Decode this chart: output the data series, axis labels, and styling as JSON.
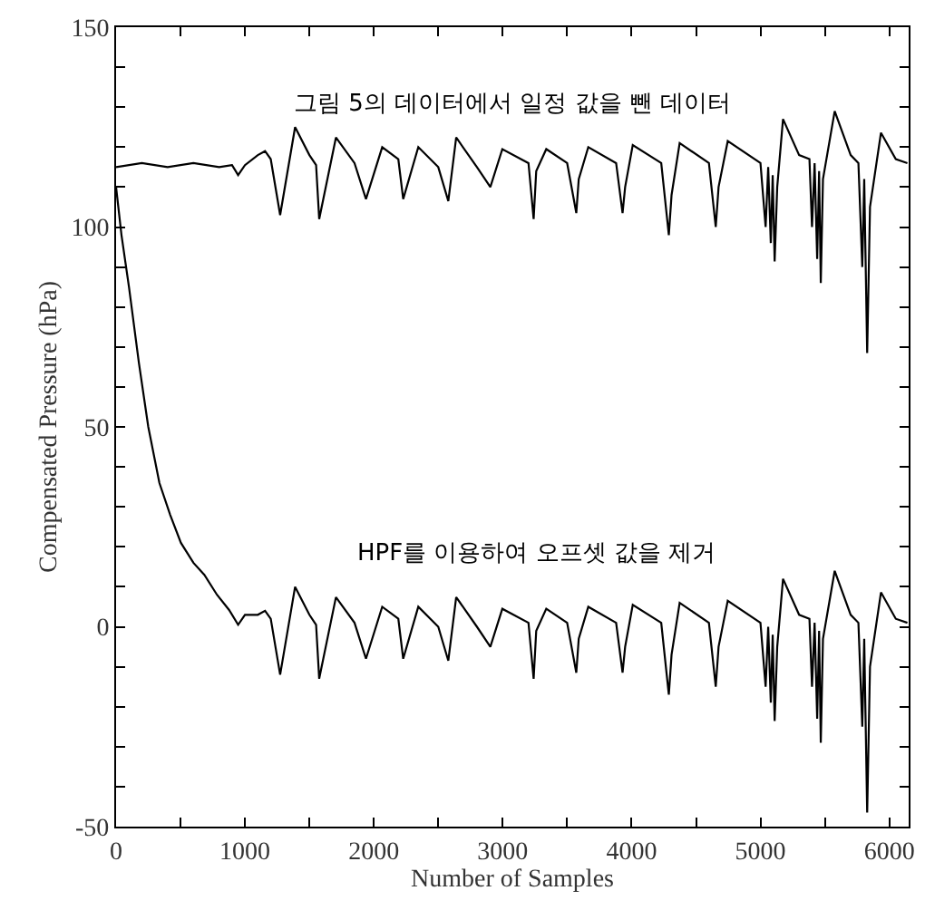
{
  "chart_data": {
    "type": "line",
    "xlabel": "Number of Samples",
    "ylabel": "Compensated Pressure (hPa)",
    "xlim": [
      0,
      6150
    ],
    "ylim": [
      -50,
      150
    ],
    "xticks": [
      0,
      {
        "value": 500,
        "label": null
      },
      1000,
      {
        "value": 1500,
        "label": null
      },
      2000,
      {
        "value": 2500,
        "label": null
      },
      3000,
      {
        "value": 3500,
        "label": null
      },
      4000,
      {
        "value": 4500,
        "label": null
      },
      5000,
      {
        "value": 5500,
        "label": null
      },
      6000
    ],
    "yticks": [
      -50,
      {
        "value": -40,
        "label": null
      },
      {
        "value": -30,
        "label": null
      },
      {
        "value": -20,
        "label": null
      },
      {
        "value": -10,
        "label": null
      },
      0,
      {
        "value": 10,
        "label": null
      },
      {
        "value": 20,
        "label": null
      },
      {
        "value": 30,
        "label": null
      },
      {
        "value": 40,
        "label": null
      },
      50,
      {
        "value": 60,
        "label": null
      },
      {
        "value": 70,
        "label": null
      },
      {
        "value": 80,
        "label": null
      },
      {
        "value": 90,
        "label": null
      },
      100,
      {
        "value": 110,
        "label": null
      },
      {
        "value": 120,
        "label": null
      },
      {
        "value": 130,
        "label": null
      },
      {
        "value": 140,
        "label": null
      },
      150
    ],
    "legend": false,
    "marker": "none",
    "line_style": "solid",
    "annotations": [
      "그림 5의 데이터에서 일정 값을 뺀 데이터",
      "HPF를 이용하여 오프셋 값을 제거"
    ],
    "series": [
      {
        "color": "#000000",
        "x": [
          0,
          200,
          400,
          600,
          800,
          900,
          947,
          1000,
          1100,
          1156,
          1200,
          1273,
          1389,
          1500,
          1552,
          1576,
          1706,
          1850,
          1939,
          2065,
          2190,
          2228,
          2345,
          2500,
          2578,
          2639,
          2800,
          2904,
          2997,
          3200,
          3240,
          3260,
          3338,
          3500,
          3571,
          3590,
          3664,
          3880,
          3930,
          3950,
          4009,
          4230,
          4289,
          4310,
          4373,
          4600,
          4653,
          4675,
          4746,
          5000,
          5040,
          5060,
          5080,
          5095,
          5110,
          5130,
          5175,
          5300,
          5380,
          5400,
          5420,
          5440,
          5455,
          5468,
          5485,
          5576,
          5700,
          5760,
          5790,
          5805,
          5828,
          5850,
          5935,
          6050,
          6140
        ],
        "values": [
          115,
          116,
          115,
          116,
          115,
          115.5,
          113,
          115.5,
          118,
          119,
          117,
          103,
          125,
          118,
          115.5,
          102,
          122.4,
          116,
          107,
          120,
          117,
          107,
          120,
          115,
          106.5,
          122.4,
          115,
          110,
          119.5,
          116,
          102,
          114,
          119.5,
          116,
          103.5,
          112,
          120,
          116,
          103.5,
          110,
          120.5,
          116,
          98,
          108,
          121,
          116,
          100,
          110,
          121.5,
          116,
          100,
          115,
          96,
          113,
          91.4,
          110,
          127,
          118,
          117,
          100,
          116,
          92,
          114,
          86,
          112,
          129,
          118,
          116,
          90,
          112,
          68.5,
          105,
          123.6,
          117,
          116
        ]
      },
      {
        "color": "#000000",
        "x": [
          0,
          42,
          100,
          177,
          250,
          336,
          420,
          503,
          600,
          685,
          783,
          877,
          947,
          1000,
          1100,
          1156,
          1200,
          1273,
          1389,
          1500,
          1552,
          1576,
          1706,
          1850,
          1939,
          2065,
          2190,
          2228,
          2345,
          2500,
          2578,
          2639,
          2800,
          2904,
          2997,
          3200,
          3240,
          3260,
          3338,
          3500,
          3571,
          3590,
          3664,
          3880,
          3930,
          3950,
          4009,
          4230,
          4289,
          4310,
          4373,
          4600,
          4653,
          4675,
          4746,
          5000,
          5040,
          5060,
          5080,
          5095,
          5110,
          5130,
          5175,
          5300,
          5380,
          5400,
          5420,
          5440,
          5455,
          5468,
          5485,
          5576,
          5700,
          5760,
          5790,
          5805,
          5828,
          5850,
          5935,
          6050,
          6140
        ],
        "values": [
          110,
          98,
          85,
          66,
          50,
          36,
          28,
          21,
          16,
          13,
          8,
          4.2,
          0.5,
          3,
          3,
          4,
          2,
          -12,
          10,
          3,
          0.5,
          -13,
          7.4,
          1,
          -8,
          5,
          2,
          -8,
          5,
          0,
          -8.5,
          7.4,
          0,
          -5,
          4.5,
          1,
          -13,
          -1,
          4.5,
          1,
          -11.5,
          -3,
          5,
          1,
          -11.5,
          -5,
          5.5,
          1,
          -17,
          -7,
          6,
          1,
          -15,
          -5,
          6.5,
          1,
          -15,
          0,
          -19,
          -2,
          -23.6,
          -5,
          12,
          3,
          2,
          -15,
          1,
          -23,
          -1,
          -29,
          -3,
          14,
          3,
          1,
          -25,
          -3,
          -46.5,
          -10,
          8.6,
          2,
          1
        ]
      }
    ]
  }
}
